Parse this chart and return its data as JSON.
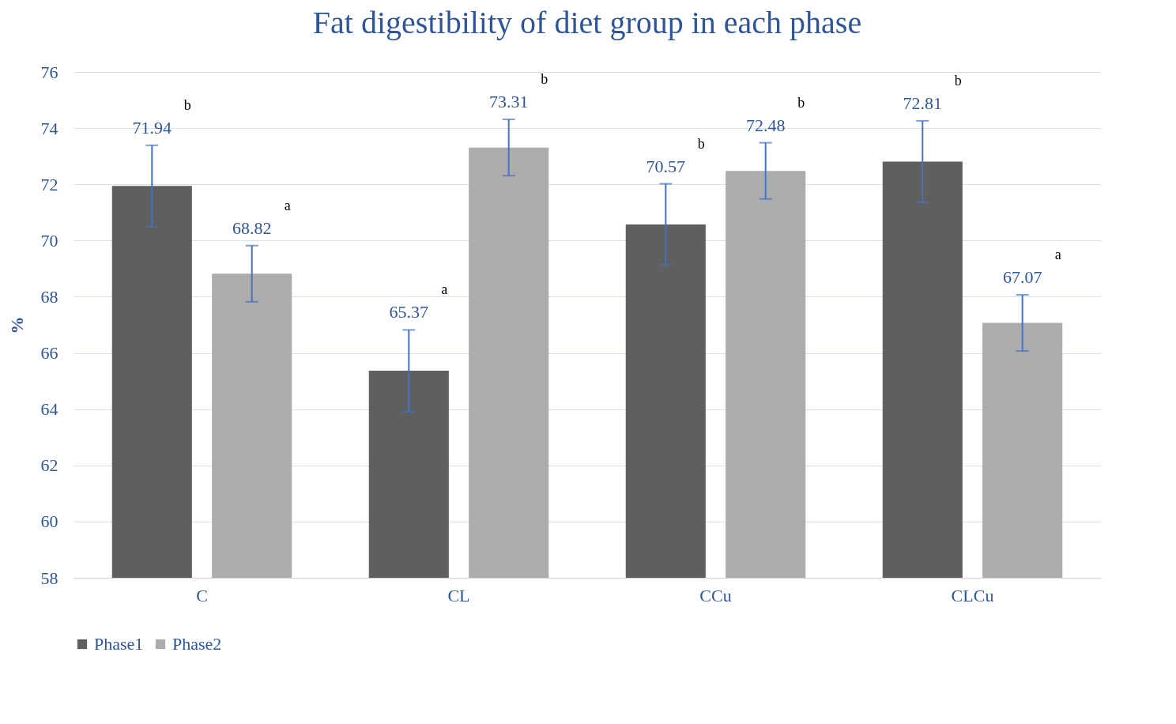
{
  "chart_data": {
    "type": "bar",
    "title": "Fat digestibility of diet group in each phase",
    "ylabel": "%",
    "categories": [
      "C",
      "CL",
      "CCu",
      "CLCu"
    ],
    "series": [
      {
        "name": "Phase1",
        "color": "#5f5f5f",
        "values": [
          71.94,
          65.37,
          70.57,
          72.81
        ],
        "errors": [
          1.45,
          1.45,
          1.45,
          1.45
        ]
      },
      {
        "name": "Phase2",
        "color": "#acacac",
        "values": [
          68.82,
          73.31,
          72.48,
          67.07
        ],
        "errors": [
          1.0,
          1.0,
          1.0,
          1.0
        ]
      }
    ],
    "ylim": [
      58,
      76
    ],
    "yticks": [
      58,
      60,
      62,
      64,
      66,
      68,
      70,
      72,
      74,
      76
    ],
    "grid": "y",
    "legend": "bottom",
    "data_labels": true,
    "annotations": [
      "b",
      "a",
      "a",
      "b",
      "b",
      "b",
      "b",
      "a"
    ]
  }
}
